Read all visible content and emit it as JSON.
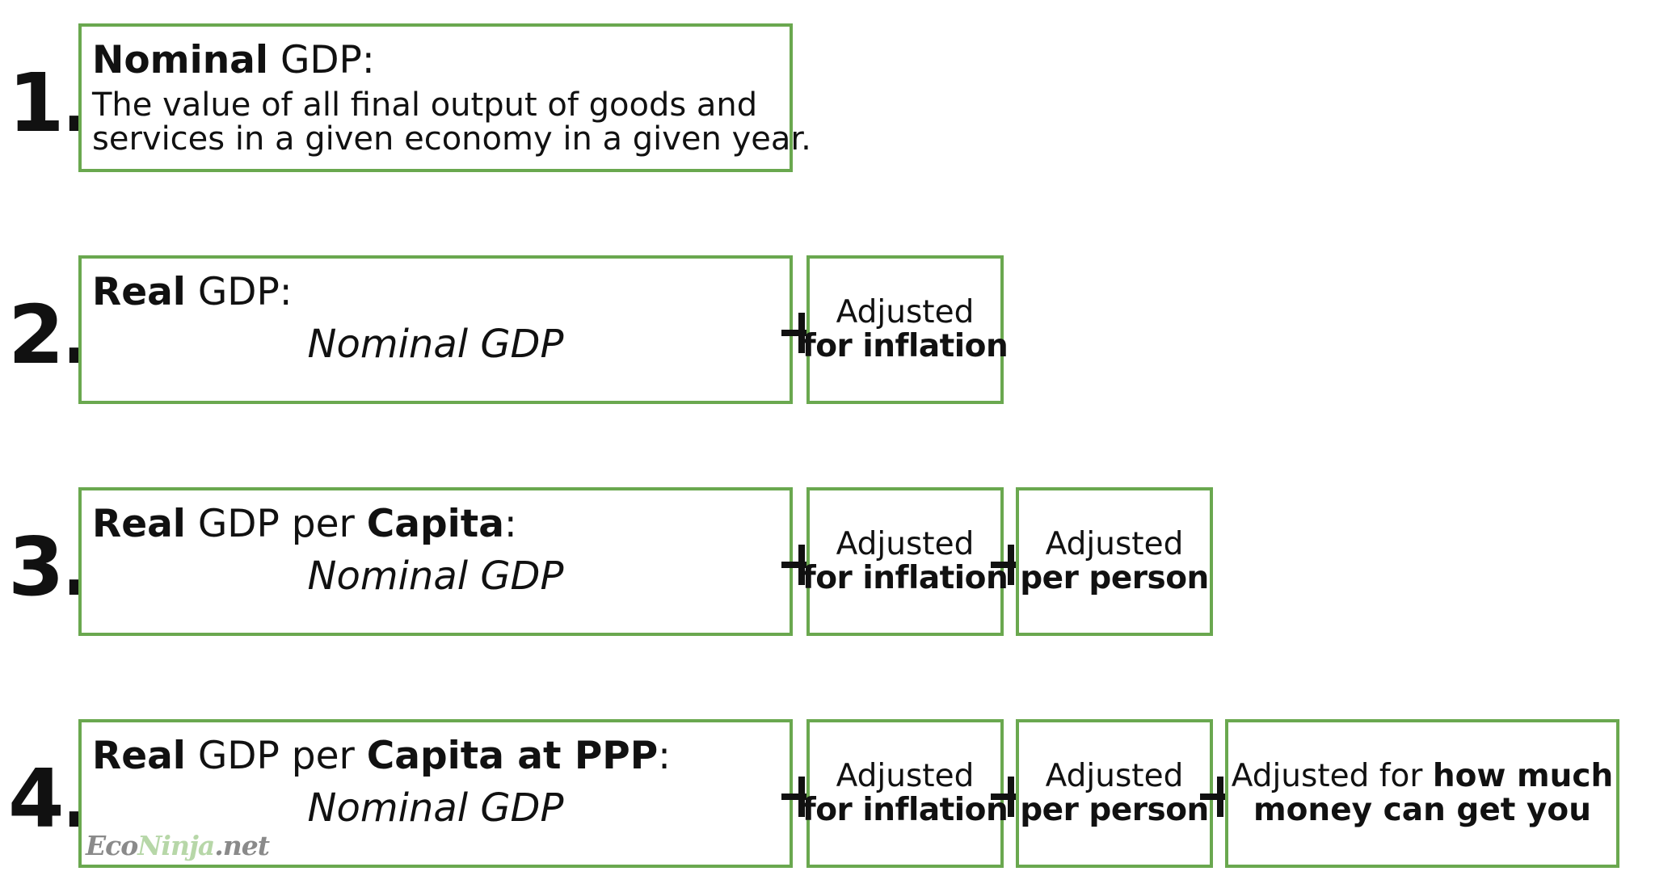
{
  "accent_color": "#6aa84f",
  "items": [
    {
      "number": "1.",
      "title_bold": "Nominal",
      "title_rest": " GDP:",
      "description_line1": "The value of all final output of goods and",
      "description_line2": "services in a given economy in a given year."
    },
    {
      "number": "2.",
      "title_bold": "Real",
      "title_rest": " GDP:",
      "formula": "Nominal GDP",
      "adjustments": [
        {
          "line1": "Adjusted",
          "line2": "for inflation"
        }
      ]
    },
    {
      "number": "3.",
      "title_bold": "Real",
      "title_mid": " GDP per ",
      "title_bold2": "Capita",
      "title_end": ":",
      "formula": "Nominal GDP",
      "adjustments": [
        {
          "line1": "Adjusted",
          "line2": "for inflation"
        },
        {
          "line1": "Adjusted",
          "line2": "per person"
        }
      ]
    },
    {
      "number": "4.",
      "title_bold": "Real",
      "title_mid": " GDP per ",
      "title_bold2": "Capita at PPP",
      "title_end": ":",
      "formula": "Nominal GDP",
      "adjustments": [
        {
          "line1": "Adjusted",
          "line2": "for inflation"
        },
        {
          "line1": "Adjusted",
          "line2": "per person"
        },
        {
          "line1_plain": "Adjusted for ",
          "line1_bold": "how much",
          "line2": "money can get you"
        }
      ]
    }
  ],
  "watermark": {
    "part1": "Eco",
    "part2": "Ninja",
    "part3": ".net"
  }
}
